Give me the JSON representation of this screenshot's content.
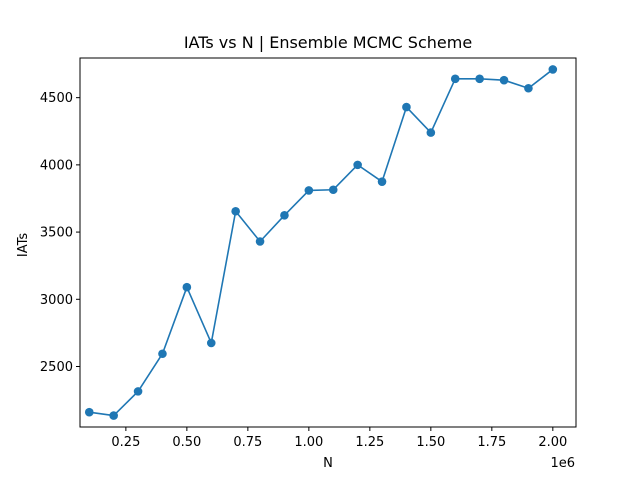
{
  "chart_data": {
    "type": "line",
    "title": "IATs vs N | Ensemble MCMC Scheme",
    "xlabel": "N",
    "ylabel": "IATs",
    "x_offset_label": "1e6",
    "xlim": [
      0.062,
      2.095
    ],
    "ylim": [
      2050,
      4795
    ],
    "x_ticks": [
      0.25,
      0.5,
      0.75,
      1.0,
      1.25,
      1.5,
      1.75,
      2.0
    ],
    "x_tick_labels": [
      "0.25",
      "0.50",
      "0.75",
      "1.00",
      "1.25",
      "1.50",
      "1.75",
      "2.00"
    ],
    "y_ticks": [
      2500,
      3000,
      3500,
      4000,
      4500
    ],
    "y_tick_labels": [
      "2500",
      "3000",
      "3500",
      "4000",
      "4500"
    ],
    "grid": false,
    "marker": "circle",
    "color": "#1f77b4",
    "series": [
      {
        "x": [
          0.1,
          0.2,
          0.3,
          0.4,
          0.5,
          0.6,
          0.7,
          0.8,
          0.9,
          1.0,
          1.1,
          1.2,
          1.3,
          1.4,
          1.5,
          1.6,
          1.7,
          1.8,
          1.9,
          2.0
        ],
        "values": [
          2160,
          2135,
          2315,
          2595,
          3090,
          2675,
          3655,
          3430,
          3625,
          3810,
          3815,
          4000,
          3875,
          4430,
          4240,
          4640,
          4640,
          4630,
          4570,
          4710
        ]
      }
    ]
  }
}
